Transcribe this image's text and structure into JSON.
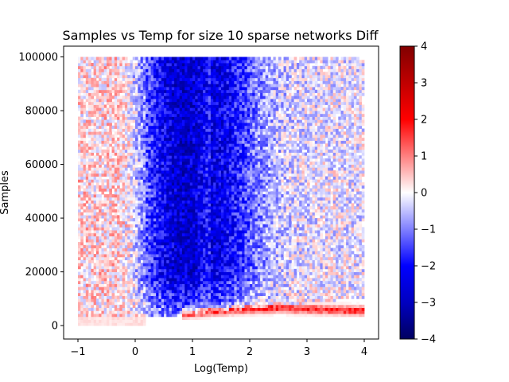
{
  "chart_data": {
    "type": "heatmap",
    "title": "Samples vs Temp for size 10 sparse networks Diff",
    "xlabel": "Log(Temp)",
    "ylabel": "Samples",
    "xlim": [
      -1.25,
      4.25
    ],
    "ylim": [
      -5000,
      104000
    ],
    "x_ticks": [
      -1,
      0,
      1,
      2,
      3,
      4
    ],
    "x_tick_labels": [
      "−1",
      "0",
      "1",
      "2",
      "3",
      "4"
    ],
    "y_ticks": [
      0,
      20000,
      40000,
      60000,
      80000,
      100000
    ],
    "y_tick_labels": [
      "0",
      "20000",
      "40000",
      "60000",
      "80000",
      "100000"
    ],
    "colorbar": {
      "colormap": "seismic",
      "range": [
        -4,
        4
      ],
      "ticks": [
        4,
        3,
        2,
        1,
        0,
        -1,
        -2,
        -3,
        -4
      ],
      "tick_labels": [
        "4",
        "3",
        "2",
        "1",
        "0",
        "−1",
        "−2",
        "−3",
        "−4"
      ]
    },
    "data_extent": {
      "x": [
        -1,
        4
      ],
      "y": [
        0,
        100000
      ]
    },
    "regions": [
      {
        "description": "strong negative band",
        "x_range": [
          0.2,
          1.6
        ],
        "y_range": [
          5000,
          100000
        ],
        "value": -2
      },
      {
        "description": "positive ridge",
        "x_range": [
          0.8,
          4.0
        ],
        "y_approx": 6000,
        "value": 1.5
      },
      {
        "description": "faint positive",
        "x_range": [
          -1,
          0.2
        ],
        "y_range": [
          0,
          100000
        ],
        "value": 0.1
      }
    ]
  }
}
